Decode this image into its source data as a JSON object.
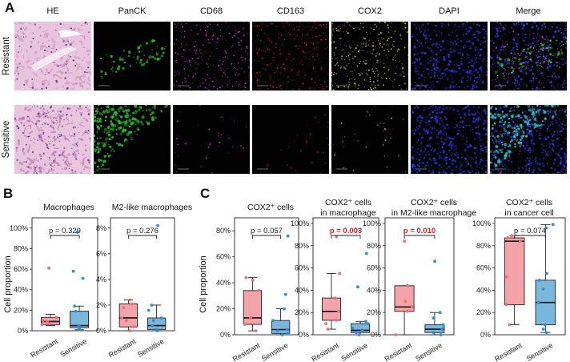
{
  "panel_labels": {
    "a": "A",
    "b": "B",
    "c": "C"
  },
  "image_panel": {
    "columns": [
      "HE",
      "PanCK",
      "CD68",
      "CD163",
      "COX2",
      "DAPI",
      "Merge"
    ],
    "rows": [
      "Resistant",
      "Sensitive"
    ],
    "channel_colors": {
      "panck": "#22c322",
      "cd68": "#c23ac8",
      "cd163": "#d42020",
      "cox2": "#d8cf28",
      "dapi": "#2c35e8",
      "he_pink": "#d9a3c8"
    }
  },
  "plots": {
    "ylabel": "Cell proportion",
    "group_colors": {
      "resistant": "#f4a3a8",
      "sensitive": "#79b7dd"
    },
    "point_colors": {
      "resistant": "#ef6d73",
      "sensitive": "#2f8fd0"
    }
  },
  "chart_data": [
    {
      "type": "box",
      "title": [
        "Macrophages"
      ],
      "categories": [
        "Resistant",
        "Sensitive"
      ],
      "yticks": [
        "0%",
        "20%",
        "40%",
        "60%",
        "80%",
        "100%"
      ],
      "ylim": [
        0,
        1.1
      ],
      "pvalue": "p = 0.329",
      "significant": false,
      "series": [
        {
          "name": "Resistant",
          "q1": 0.06,
          "median": 0.09,
          "q3": 0.13,
          "whisker_low": 0.05,
          "whisker_high": 0.16,
          "points": [
            0.06,
            0.07,
            0.09,
            0.1,
            0.13,
            0.61
          ]
        },
        {
          "name": "Sensitive",
          "q1": 0.03,
          "median": 0.05,
          "q3": 0.19,
          "whisker_low": 0.01,
          "whisker_high": 0.24,
          "points": [
            0.01,
            0.03,
            0.05,
            0.19,
            0.24,
            0.51,
            0.58,
            0.96
          ]
        }
      ]
    },
    {
      "type": "box",
      "title": [
        "M2-like macrophages"
      ],
      "categories": [
        "Resistant",
        "Sensitive"
      ],
      "yticks": [
        "0%",
        "2%",
        "4%",
        "6%",
        "8%"
      ],
      "ylim": [
        0,
        0.088
      ],
      "pvalue": "p = 0.276",
      "significant": false,
      "series": [
        {
          "name": "Resistant",
          "q1": 0.003,
          "median": 0.01,
          "q3": 0.021,
          "whisker_low": 0.0,
          "whisker_high": 0.024,
          "points": [
            0.0,
            0.003,
            0.008,
            0.01,
            0.018,
            0.021,
            0.024
          ]
        },
        {
          "name": "Sensitive",
          "q1": 0.001,
          "median": 0.004,
          "q3": 0.01,
          "whisker_low": 0.0,
          "whisker_high": 0.02,
          "points": [
            0.0,
            0.001,
            0.004,
            0.008,
            0.01,
            0.016,
            0.02,
            0.082
          ]
        }
      ]
    },
    {
      "type": "box",
      "title": [
        "COX2⁺ cells"
      ],
      "categories": [
        "Resistant",
        "Sensitive"
      ],
      "yticks": [
        "0%",
        "20%",
        "40%",
        "60%",
        "80%"
      ],
      "ylim": [
        0,
        0.9
      ],
      "pvalue": "p = 0.057",
      "significant": false,
      "series": [
        {
          "name": "Resistant",
          "q1": 0.08,
          "median": 0.13,
          "q3": 0.34,
          "whisker_low": 0.03,
          "whisker_high": 0.44,
          "points": [
            0.03,
            0.08,
            0.13,
            0.34,
            0.42,
            0.44
          ]
        },
        {
          "name": "Sensitive",
          "q1": 0.01,
          "median": 0.04,
          "q3": 0.11,
          "whisker_low": 0.0,
          "whisker_high": 0.2,
          "points": [
            0.0,
            0.01,
            0.03,
            0.04,
            0.11,
            0.2,
            0.31,
            0.76
          ]
        }
      ]
    },
    {
      "type": "box",
      "title": [
        "COX2⁺ cells",
        "in macrophage"
      ],
      "categories": [
        "Resistant",
        "Sensitive"
      ],
      "yticks": [
        "0%",
        "20%",
        "40%",
        "60%",
        "80%",
        "100%"
      ],
      "ylim": [
        0,
        1.05
      ],
      "pvalue": "p = 0.003",
      "significant": true,
      "series": [
        {
          "name": "Resistant",
          "q1": 0.13,
          "median": 0.21,
          "q3": 0.33,
          "whisker_low": 0.05,
          "whisker_high": 0.55,
          "points": [
            0.05,
            0.1,
            0.13,
            0.21,
            0.33,
            0.55,
            0.88
          ]
        },
        {
          "name": "Sensitive",
          "q1": 0.02,
          "median": 0.04,
          "q3": 0.1,
          "whisker_low": 0.0,
          "whisker_high": 0.12,
          "points": [
            0.0,
            0.02,
            0.04,
            0.06,
            0.1,
            0.12,
            0.43,
            0.73
          ]
        }
      ]
    },
    {
      "type": "box",
      "title": [
        "COX2⁺ cells",
        "in M2-like macrophage"
      ],
      "categories": [
        "Resistant",
        "Sensitive"
      ],
      "yticks": [
        "0%",
        "20%",
        "40%",
        "60%",
        "80%",
        "100%"
      ],
      "ylim": [
        0,
        1.05
      ],
      "pvalue": "p = 0.010",
      "significant": true,
      "series": [
        {
          "name": "Resistant",
          "q1": 0.21,
          "median": 0.25,
          "q3": 0.44,
          "whisker_low": 0.0,
          "whisker_high": 0.44,
          "points": [
            0.0,
            0.21,
            0.25,
            0.3,
            0.44,
            0.84
          ]
        },
        {
          "name": "Sensitive",
          "q1": 0.02,
          "median": 0.05,
          "q3": 0.09,
          "whisker_low": 0.0,
          "whisker_high": 0.2,
          "points": [
            0.0,
            0.02,
            0.05,
            0.09,
            0.15,
            0.2,
            0.66
          ]
        }
      ]
    },
    {
      "type": "box",
      "title": [
        "COX2⁺ cells",
        "in cancer cell"
      ],
      "categories": [
        "Resistant",
        "Sensitive"
      ],
      "yticks": [
        "0%",
        "20%",
        "40%",
        "60%",
        "80%",
        "100%"
      ],
      "ylim": [
        0,
        1.05
      ],
      "pvalue": "p = 0.074",
      "significant": false,
      "series": [
        {
          "name": "Resistant",
          "q1": 0.27,
          "median": 0.84,
          "q3": 0.87,
          "whisker_low": 0.09,
          "whisker_high": 0.89,
          "points": [
            0.09,
            0.27,
            0.52,
            0.84,
            0.87,
            0.89
          ]
        },
        {
          "name": "Sensitive",
          "q1": 0.09,
          "median": 0.29,
          "q3": 0.49,
          "whisker_low": 0.02,
          "whisker_high": 0.99,
          "points": [
            0.02,
            0.05,
            0.09,
            0.29,
            0.41,
            0.49,
            0.55,
            0.96,
            0.99
          ]
        }
      ]
    }
  ]
}
